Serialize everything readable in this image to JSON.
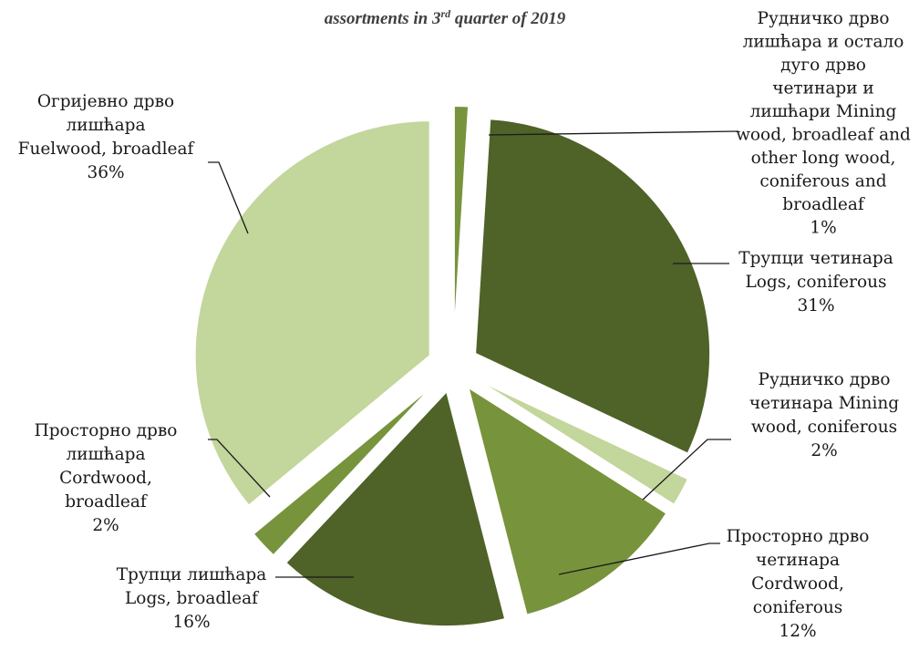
{
  "chart_data": {
    "type": "pie",
    "title_partial": "assortments in 3",
    "title_sup": "rd",
    "title_tail": " quarter of 2019",
    "slices": [
      {
        "label_lines": [
          "Рудничко дрво",
          "лишћара и остало",
          "дуго дрво",
          "четинари и",
          "лишћари Mining",
          "wood, broadleaf and",
          "other long wood,",
          "coniferous and",
          "broadleaf",
          "1%"
        ],
        "value": 1,
        "color": "#77933c"
      },
      {
        "label_lines": [
          "Трупци четинара",
          "Logs, coniferous",
          "31%"
        ],
        "value": 31,
        "color": "#4f6228"
      },
      {
        "label_lines": [
          "Рудничко дрво",
          "четинара Mining",
          "wood, coniferous",
          "2%"
        ],
        "value": 2,
        "color": "#c3d69b"
      },
      {
        "label_lines": [
          "Просторно дрво",
          "четинара",
          "Cordwood,",
          "coniferous",
          "12%"
        ],
        "value": 12,
        "color": "#77933c"
      },
      {
        "label_lines": [
          "Трупци лишћара",
          "Logs, broadleaf",
          "16%"
        ],
        "value": 16,
        "color": "#4f6228"
      },
      {
        "label_lines": [
          "Просторно дрво",
          "лишћара",
          "Cordwood,",
          "broadleaf",
          "2%"
        ],
        "value": 2,
        "color": "#77933c"
      },
      {
        "label_lines": [
          "Огријевно дрво",
          "лишћара",
          "Fuelwood, broadleaf",
          "36%"
        ],
        "value": 36,
        "color": "#c3d69b"
      }
    ],
    "legend": "none"
  }
}
